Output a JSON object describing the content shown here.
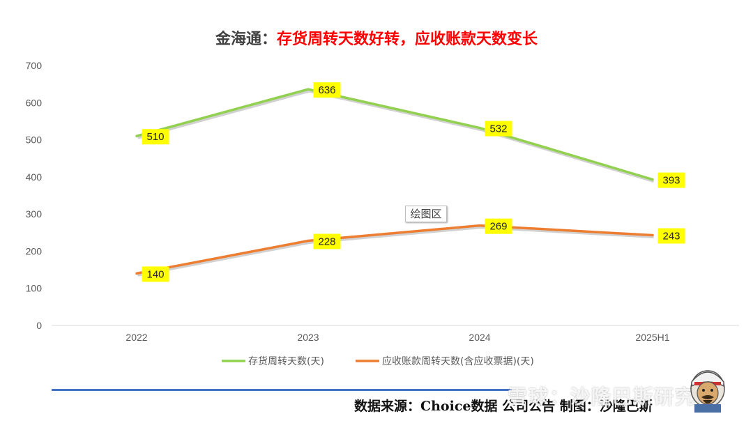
{
  "title": {
    "prefix": "金海通：",
    "highlight": "存货周转天数好转，应收账款天数变长"
  },
  "plot_area_label": "绘图区",
  "source": "数据来源：Choice数据  公司公告  制图：沙隆巴斯",
  "watermark": "雪球：沙隆巴斯研究",
  "colors": {
    "series1": "#92d050",
    "series2": "#ed7d31",
    "label_bg": "#ffff00",
    "rule": "#4472c4"
  },
  "chart_data": {
    "type": "line",
    "categories": [
      "2022",
      "2023",
      "2024",
      "2025H1"
    ],
    "series": [
      {
        "name": "存货周转天数(天)",
        "values": [
          510,
          636,
          532,
          393
        ]
      },
      {
        "name": "应收账款周转天数(含应收票据)(天)",
        "values": [
          140,
          228,
          269,
          243
        ]
      }
    ],
    "ylim": [
      0,
      700
    ],
    "yticks": [
      0,
      100,
      200,
      300,
      400,
      500,
      600,
      700
    ],
    "grid": false,
    "legend": "bottom",
    "data_labels": true
  }
}
